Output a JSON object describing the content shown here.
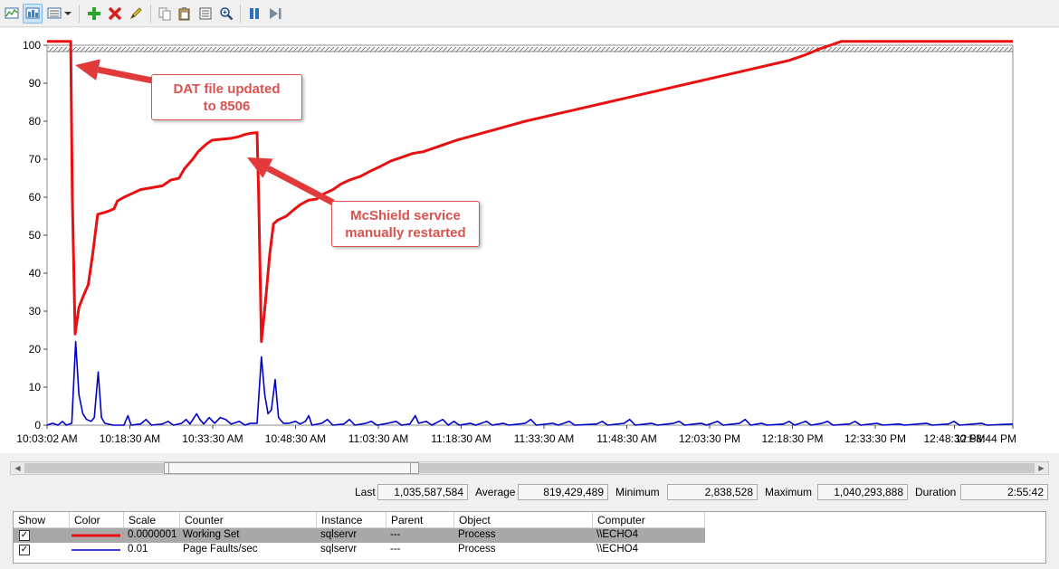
{
  "toolbar": {
    "buttons": [
      {
        "name": "view-graph-icon",
        "active": false
      },
      {
        "name": "view-histogram-icon",
        "active": true
      },
      {
        "name": "change-graph-type-icon",
        "active": false
      },
      {
        "name": "dropdown-arrow-icon",
        "active": false
      },
      {
        "name": "add-counter-icon",
        "active": false
      },
      {
        "name": "delete-counter-icon",
        "active": false
      },
      {
        "name": "highlight-icon",
        "active": false
      },
      {
        "name": "copy-properties-icon",
        "active": false
      },
      {
        "name": "paste-counter-list-icon",
        "active": false
      },
      {
        "name": "properties-icon",
        "active": false
      },
      {
        "name": "zoom-icon",
        "active": false
      },
      {
        "name": "freeze-display-icon",
        "active": false
      },
      {
        "name": "update-data-icon",
        "active": false
      }
    ]
  },
  "chart_data": {
    "type": "line",
    "ylim": [
      0,
      100
    ],
    "y_ticks": [
      0,
      10,
      20,
      30,
      40,
      50,
      60,
      70,
      80,
      90,
      100
    ],
    "x_tick_labels": [
      "10:03:02 AM",
      "10:18:30 AM",
      "10:33:30 AM",
      "10:48:30 AM",
      "11:03:30 AM",
      "11:18:30 AM",
      "11:33:30 AM",
      "11:48:30 AM",
      "12:03:30 PM",
      "12:18:30 PM",
      "12:33:30 PM",
      "12:48:30 PM",
      "12:58:44 PM"
    ],
    "x_range_minutes": [
      0,
      175.7
    ],
    "grid": false,
    "series": [
      {
        "name": "Working Set",
        "color": "#e81010",
        "points": [
          [
            0,
            101
          ],
          [
            4.3,
            101
          ],
          [
            4.6,
            60
          ],
          [
            5.1,
            24
          ],
          [
            5.8,
            31
          ],
          [
            6.6,
            34
          ],
          [
            7.5,
            37
          ],
          [
            8.3,
            45
          ],
          [
            9.2,
            55.5
          ],
          [
            10.5,
            56
          ],
          [
            11.5,
            56.5
          ],
          [
            12.2,
            57
          ],
          [
            12.8,
            59
          ],
          [
            14,
            60
          ],
          [
            15.5,
            61
          ],
          [
            17,
            62
          ],
          [
            19,
            62.5
          ],
          [
            21,
            63
          ],
          [
            22.5,
            64.5
          ],
          [
            24,
            65
          ],
          [
            25,
            67.5
          ],
          [
            26.5,
            70
          ],
          [
            27.5,
            72
          ],
          [
            29,
            74
          ],
          [
            30,
            75
          ],
          [
            32,
            75.3
          ],
          [
            33.5,
            75.5
          ],
          [
            35,
            76
          ],
          [
            36,
            76.5
          ],
          [
            37,
            76.8
          ],
          [
            38.2,
            77
          ],
          [
            38.5,
            60
          ],
          [
            39,
            22
          ],
          [
            39.7,
            32
          ],
          [
            40.5,
            45
          ],
          [
            41.2,
            53
          ],
          [
            42,
            54
          ],
          [
            43.5,
            55
          ],
          [
            44.7,
            56.5
          ],
          [
            46,
            58
          ],
          [
            47.5,
            59.2
          ],
          [
            49,
            59.5
          ],
          [
            50.5,
            61
          ],
          [
            52,
            62
          ],
          [
            53.5,
            63.5
          ],
          [
            55,
            64.5
          ],
          [
            57,
            65.5
          ],
          [
            59,
            67
          ],
          [
            60.5,
            68
          ],
          [
            62.5,
            69.5
          ],
          [
            64.5,
            70.5
          ],
          [
            66.5,
            71.5
          ],
          [
            68.5,
            72
          ],
          [
            70.5,
            73
          ],
          [
            72.5,
            74
          ],
          [
            74.5,
            75
          ],
          [
            77,
            76
          ],
          [
            79.5,
            77
          ],
          [
            82,
            78
          ],
          [
            84.5,
            79
          ],
          [
            87,
            80
          ],
          [
            90,
            81
          ],
          [
            93,
            82
          ],
          [
            96,
            83
          ],
          [
            99,
            84
          ],
          [
            102,
            85
          ],
          [
            105,
            86
          ],
          [
            108,
            87
          ],
          [
            111,
            88
          ],
          [
            114,
            89
          ],
          [
            117,
            90
          ],
          [
            120,
            91
          ],
          [
            123,
            92
          ],
          [
            126,
            93
          ],
          [
            129,
            94
          ],
          [
            132,
            95
          ],
          [
            135,
            96
          ],
          [
            138,
            97.5
          ],
          [
            140.5,
            99
          ],
          [
            142.5,
            100
          ],
          [
            144.5,
            101
          ],
          [
            175.7,
            101
          ]
        ]
      },
      {
        "name": "Page Faults/sec",
        "color": "#0000c8",
        "points": [
          [
            0,
            0
          ],
          [
            1,
            0.5
          ],
          [
            2,
            0
          ],
          [
            2.8,
            1
          ],
          [
            3.5,
            0
          ],
          [
            4.5,
            0.5
          ],
          [
            5.2,
            22
          ],
          [
            5.8,
            8
          ],
          [
            6.5,
            3
          ],
          [
            7.2,
            1.5
          ],
          [
            8,
            1
          ],
          [
            8.6,
            2
          ],
          [
            9.3,
            14
          ],
          [
            9.9,
            2
          ],
          [
            10.5,
            0.5
          ],
          [
            12,
            0
          ],
          [
            14,
            0
          ],
          [
            14.7,
            2.5
          ],
          [
            15.3,
            0
          ],
          [
            17,
            0.3
          ],
          [
            18,
            1.5
          ],
          [
            19,
            0
          ],
          [
            21,
            0.3
          ],
          [
            22,
            1
          ],
          [
            23,
            0
          ],
          [
            24.5,
            0.5
          ],
          [
            25.3,
            1.5
          ],
          [
            26,
            0.3
          ],
          [
            27.2,
            3
          ],
          [
            27.8,
            1.5
          ],
          [
            28.5,
            0.3
          ],
          [
            29.5,
            2
          ],
          [
            30.5,
            0.5
          ],
          [
            31.5,
            2
          ],
          [
            32.5,
            1.5
          ],
          [
            33.5,
            0.3
          ],
          [
            35,
            1
          ],
          [
            36,
            0
          ],
          [
            37,
            0.5
          ],
          [
            38.2,
            0.5
          ],
          [
            39,
            18
          ],
          [
            39.6,
            8
          ],
          [
            40.2,
            3
          ],
          [
            40.8,
            4
          ],
          [
            41.5,
            12
          ],
          [
            42.1,
            2
          ],
          [
            43,
            0.5
          ],
          [
            44,
            0.5
          ],
          [
            45.2,
            1
          ],
          [
            46,
            0.3
          ],
          [
            47,
            1
          ],
          [
            47.6,
            2.5
          ],
          [
            48.2,
            0
          ],
          [
            50,
            0.5
          ],
          [
            51,
            1.5
          ],
          [
            52,
            0
          ],
          [
            54,
            0.3
          ],
          [
            55,
            1.5
          ],
          [
            56,
            0
          ],
          [
            58,
            0.5
          ],
          [
            59,
            1
          ],
          [
            60,
            0
          ],
          [
            62,
            0.5
          ],
          [
            63.5,
            1
          ],
          [
            64.5,
            0
          ],
          [
            66,
            0.3
          ],
          [
            67,
            2.5
          ],
          [
            67.6,
            0.5
          ],
          [
            69,
            1
          ],
          [
            70,
            0
          ],
          [
            72,
            1.5
          ],
          [
            73,
            0
          ],
          [
            74,
            1
          ],
          [
            75,
            0
          ],
          [
            77,
            0.5
          ],
          [
            78,
            0
          ],
          [
            80,
            1
          ],
          [
            81,
            0
          ],
          [
            83,
            0.5
          ],
          [
            84,
            0
          ],
          [
            87,
            0.5
          ],
          [
            88,
            1.5
          ],
          [
            89,
            0
          ],
          [
            92,
            0.5
          ],
          [
            93,
            0
          ],
          [
            95,
            1
          ],
          [
            96,
            0
          ],
          [
            100,
            0.3
          ],
          [
            101,
            1
          ],
          [
            102,
            0
          ],
          [
            105,
            0.5
          ],
          [
            106,
            1.5
          ],
          [
            107,
            0
          ],
          [
            110,
            0.5
          ],
          [
            111,
            0
          ],
          [
            114,
            0.5
          ],
          [
            115,
            1
          ],
          [
            116,
            0
          ],
          [
            119,
            0.5
          ],
          [
            120,
            0
          ],
          [
            122,
            1
          ],
          [
            123,
            0
          ],
          [
            126,
            0.5
          ],
          [
            127,
            1.5
          ],
          [
            128,
            0
          ],
          [
            130,
            0.5
          ],
          [
            131,
            0
          ],
          [
            134,
            0.3
          ],
          [
            135,
            1
          ],
          [
            136,
            0
          ],
          [
            138,
            1
          ],
          [
            139,
            0
          ],
          [
            141,
            0.5
          ],
          [
            142,
            1
          ],
          [
            143,
            0
          ],
          [
            146,
            0.3
          ],
          [
            147,
            1
          ],
          [
            148,
            0
          ],
          [
            151,
            0.5
          ],
          [
            152,
            0
          ],
          [
            155,
            0.3
          ],
          [
            156,
            0
          ],
          [
            160,
            0.5
          ],
          [
            161,
            0
          ],
          [
            164,
            0.3
          ],
          [
            165,
            1
          ],
          [
            166,
            0
          ],
          [
            170,
            0.5
          ],
          [
            171,
            0
          ],
          [
            175.7,
            0.3
          ]
        ]
      }
    ]
  },
  "callouts": [
    {
      "text_line1": "DAT file updated",
      "text_line2": "to 8506"
    },
    {
      "text_line1": "McShield service",
      "text_line2": "manually restarted"
    }
  ],
  "stats": {
    "last_label": "Last",
    "last_value": "1,035,587,584",
    "average_label": "Average",
    "average_value": "819,429,489",
    "minimum_label": "Minimum",
    "minimum_value": "2,838,528",
    "maximum_label": "Maximum",
    "maximum_value": "1,040,293,888",
    "duration_label": "Duration",
    "duration_value": "2:55:42"
  },
  "legend": {
    "columns": [
      "Show",
      "Color",
      "Scale",
      "Counter",
      "Instance",
      "Parent",
      "Object",
      "Computer"
    ],
    "rows": [
      {
        "show": "✓",
        "color": "#e81010",
        "scale": "0.0000001",
        "counter": "Working Set",
        "instance": "sqlservr",
        "parent": "---",
        "object": "Process",
        "computer": "\\\\ECHO4",
        "selected": true
      },
      {
        "show": "✓",
        "color": "#0000c8",
        "scale": "0.01",
        "counter": "Page Faults/sec",
        "instance": "sqlservr",
        "parent": "---",
        "object": "Process",
        "computer": "\\\\ECHO4",
        "selected": false
      }
    ]
  },
  "scrollbar": {
    "left_arrow": "◀",
    "right_arrow": "▶"
  }
}
